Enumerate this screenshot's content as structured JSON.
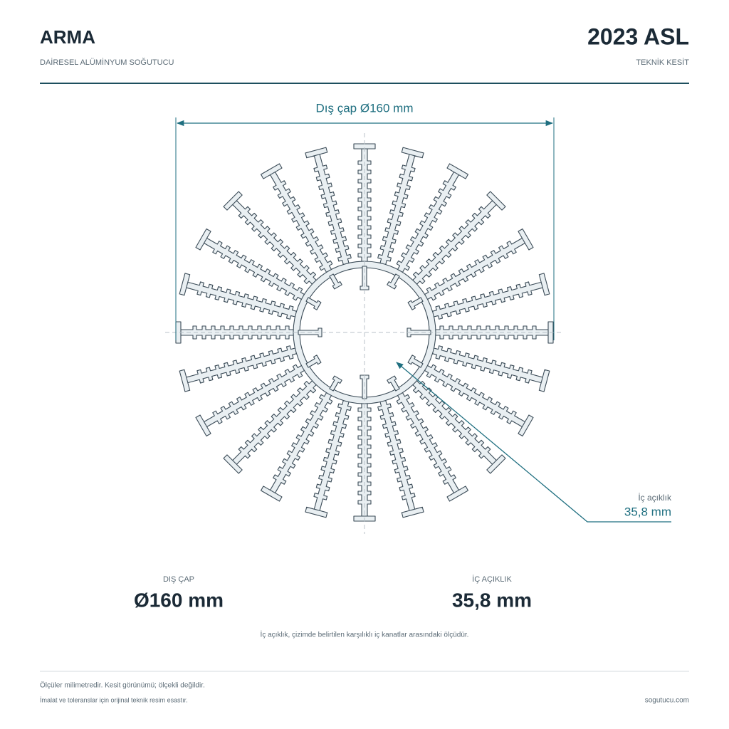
{
  "header": {
    "title": "ARMA",
    "subtitle": "DAİRESEL ALÜMİNYUM SOĞUTUCU",
    "code": "2023 ASL",
    "code_sub": "TEKNİK KESİT"
  },
  "drawing": {
    "outer_dim_label": "Dış çap Ø160 mm",
    "inner_callout_title": "İç açıklık",
    "inner_callout_value": "35,8 mm"
  },
  "specs": [
    {
      "label": "DIŞ ÇAP",
      "value": "Ø160 mm"
    },
    {
      "label": "İÇ AÇIKLIK",
      "value": "35,8 mm"
    }
  ],
  "note": "İç açıklık, çizimde belirtilen karşılıklı iç kanatlar arasındaki ölçüdür.",
  "footer": {
    "line1": "Ölçüler milimetredir. Kesit görünümü; ölçekli değildir.",
    "line2": "İmalat ve toleranslar için orijinal teknik resim esastır.",
    "site": "sogutucu.com"
  }
}
